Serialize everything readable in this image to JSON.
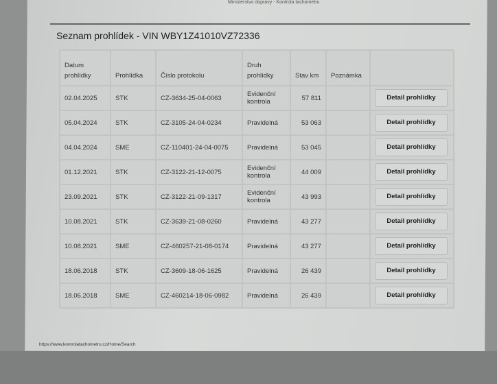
{
  "header": "Ministerstvo dopravy - Kontrola tachometru",
  "title": "Seznam prohlídek - VIN WBY1Z41010VZ72336",
  "columns": [
    "Datum prohlídky",
    "Prohlídka",
    "Číslo protokolu",
    "Druh prohlídky",
    "Stav km",
    "Poznámka",
    ""
  ],
  "rows": [
    [
      "02.04.2025",
      "STK",
      "CZ-3634-25-04-0063",
      "Evidenční kontrola",
      "57 811",
      ""
    ],
    [
      "05.04.2024",
      "STK",
      "CZ-3105-24-04-0234",
      "Pravidelná",
      "53 063",
      ""
    ],
    [
      "04.04.2024",
      "SME",
      "CZ-110401-24-04-0075",
      "Pravidelná",
      "53 045",
      ""
    ],
    [
      "01.12.2021",
      "STK",
      "CZ-3122-21-12-0075",
      "Evidenční kontrola",
      "44 009",
      ""
    ],
    [
      "23.09.2021",
      "STK",
      "CZ-3122-21-09-1317",
      "Evidenční kontrola",
      "43 993",
      ""
    ],
    [
      "10.08.2021",
      "STK",
      "CZ-3639-21-08-0260",
      "Pravidelná",
      "43 277",
      ""
    ],
    [
      "10.08.2021",
      "SME",
      "CZ-460257-21-08-0174",
      "Pravidelná",
      "43 277",
      ""
    ],
    [
      "18.06.2018",
      "STK",
      "CZ-3609-18-06-1625",
      "Pravidelná",
      "26 439",
      ""
    ],
    [
      "18.06.2018",
      "SME",
      "CZ-460214-18-06-0982",
      "Pravidelná",
      "26 439",
      ""
    ]
  ],
  "detail_label": "Detail prohlídky",
  "footer_url": "https://www.kontrolatachometru.cz/Home/Search"
}
